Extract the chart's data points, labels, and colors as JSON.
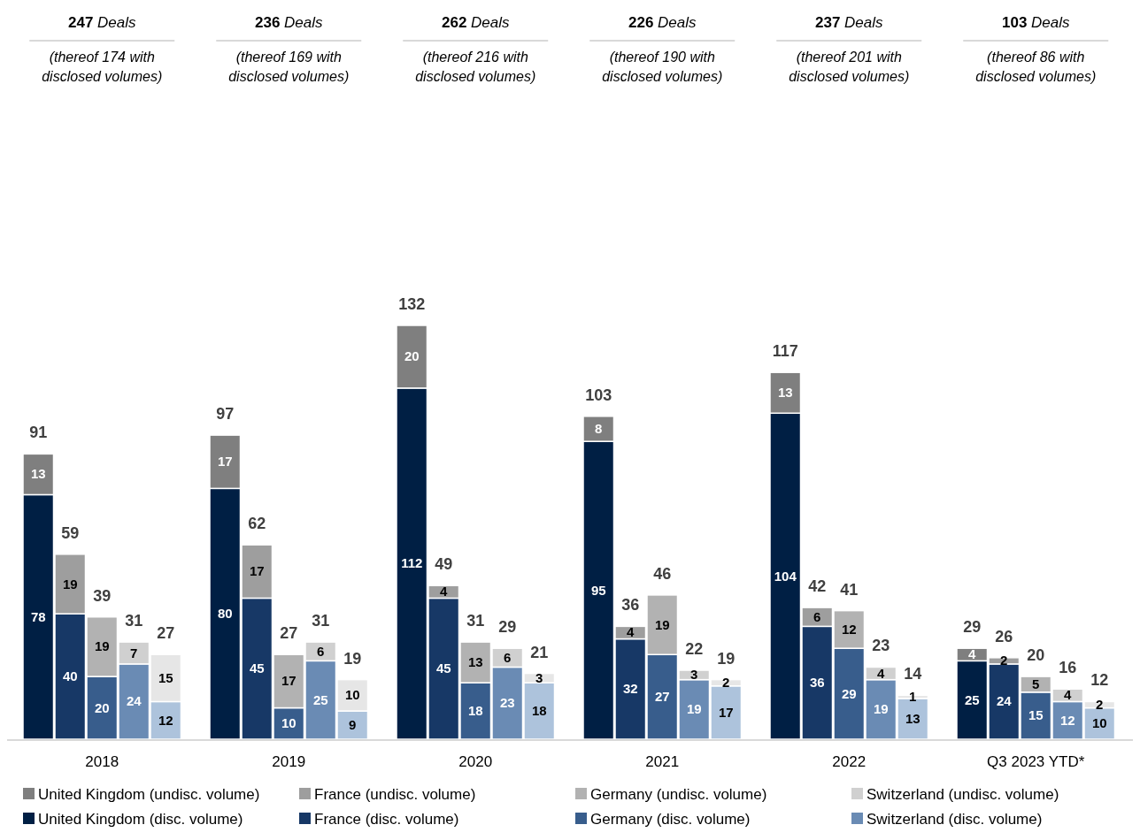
{
  "chart_data": {
    "type": "bar",
    "stacked": true,
    "data_labels": true,
    "legend": "bottom",
    "categories": [
      null,
      null,
      "2018",
      null,
      null,
      null,
      null,
      "2019",
      null,
      null,
      null,
      null,
      "2020",
      null,
      null,
      null,
      null,
      "2021",
      null,
      null,
      null,
      null,
      "2022",
      null,
      null,
      null,
      null,
      "Q3 2023 YTD*",
      null,
      null
    ],
    "series": [
      {
        "name": "United Kingdom (disc. volume)",
        "color": "#001f44",
        "values": [
          78,
          null,
          null,
          null,
          null,
          80,
          null,
          null,
          null,
          null,
          112,
          null,
          null,
          null,
          null,
          95,
          null,
          null,
          null,
          null,
          104,
          null,
          null,
          null,
          null,
          25,
          null,
          null,
          null,
          null
        ]
      },
      {
        "name": "France (disc. volume)",
        "color": "#173866",
        "values": [
          null,
          40,
          null,
          null,
          null,
          null,
          45,
          null,
          null,
          null,
          null,
          45,
          null,
          null,
          null,
          null,
          32,
          null,
          null,
          null,
          null,
          36,
          null,
          null,
          null,
          null,
          24,
          null,
          null,
          null
        ]
      },
      {
        "name": "Germany (disc. volume)",
        "color": "#385d8c",
        "values": [
          null,
          null,
          20,
          null,
          null,
          null,
          null,
          10,
          null,
          null,
          null,
          null,
          18,
          null,
          null,
          null,
          null,
          27,
          null,
          null,
          null,
          null,
          29,
          null,
          null,
          null,
          null,
          15,
          null,
          null
        ]
      },
      {
        "name": "Switzerland (disc. volume)",
        "color": "#6a8bb4",
        "values": [
          null,
          null,
          null,
          24,
          null,
          null,
          null,
          null,
          25,
          null,
          null,
          null,
          null,
          23,
          null,
          null,
          null,
          null,
          19,
          null,
          null,
          null,
          null,
          19,
          null,
          null,
          null,
          null,
          12,
          null
        ]
      },
      {
        "color": "#adc3dc",
        "values": [
          null,
          null,
          null,
          null,
          12,
          null,
          null,
          null,
          null,
          9,
          null,
          null,
          null,
          null,
          18,
          null,
          null,
          null,
          null,
          17,
          null,
          null,
          null,
          null,
          13,
          null,
          null,
          null,
          null,
          10
        ]
      },
      {
        "name": "United Kingdom (undisc. volume)",
        "color": "#7f7f7f",
        "values": [
          13,
          null,
          null,
          null,
          null,
          17,
          null,
          null,
          null,
          null,
          20,
          null,
          null,
          null,
          null,
          8,
          null,
          null,
          null,
          null,
          13,
          null,
          null,
          null,
          null,
          4,
          null,
          null,
          null,
          null
        ]
      },
      {
        "name": "France (undisc. volume)",
        "color": "#9e9e9e",
        "values": [
          null,
          19,
          null,
          null,
          null,
          null,
          17,
          null,
          null,
          null,
          null,
          4,
          null,
          null,
          null,
          null,
          4,
          null,
          null,
          null,
          null,
          6,
          null,
          null,
          null,
          null,
          2,
          null,
          null,
          null
        ]
      },
      {
        "name": "Germany (undisc. volume)",
        "color": "#b2b2b2",
        "values": [
          null,
          null,
          19,
          null,
          null,
          null,
          null,
          17,
          null,
          null,
          null,
          null,
          13,
          null,
          null,
          null,
          null,
          19,
          null,
          null,
          null,
          null,
          12,
          null,
          null,
          null,
          null,
          5,
          null,
          null
        ]
      },
      {
        "name": "Switzerland (undisc. volume)",
        "color": "#d0d0d0",
        "values": [
          null,
          null,
          null,
          7,
          null,
          null,
          null,
          null,
          6,
          null,
          null,
          null,
          null,
          6,
          null,
          null,
          null,
          null,
          3,
          null,
          null,
          null,
          null,
          4,
          null,
          null,
          null,
          null,
          4,
          null
        ]
      },
      {
        "color": "#e6e6e6",
        "values": [
          null,
          null,
          null,
          null,
          15,
          null,
          null,
          null,
          null,
          10,
          null,
          null,
          null,
          null,
          3,
          null,
          null,
          null,
          null,
          2,
          null,
          null,
          null,
          null,
          1,
          null,
          null,
          null,
          null,
          2
        ]
      }
    ],
    "totals": [
      "91",
      "59",
      "39",
      "31",
      "27",
      "97",
      "62",
      "27",
      "31",
      "19",
      "132",
      "49",
      "31",
      "29",
      "21",
      "103",
      "36",
      "46",
      "22",
      "19",
      "117",
      "42",
      "41",
      "23",
      "14",
      "29",
      "26",
      "20",
      "16",
      "12"
    ],
    "annotations": [
      "247 Deals",
      "(thereof 174 with disclosed volumes)",
      "236 Deals",
      "(thereof 169 with disclosed volumes)",
      "262 Deals",
      "(thereof 216 with disclosed volumes)",
      "226 Deals",
      "(thereof 190 with disclosed volumes)",
      "237 Deals",
      "(thereof 201 with disclosed volumes)",
      "103 Deals",
      "(thereof 86 with disclosed volumes)"
    ]
  }
}
